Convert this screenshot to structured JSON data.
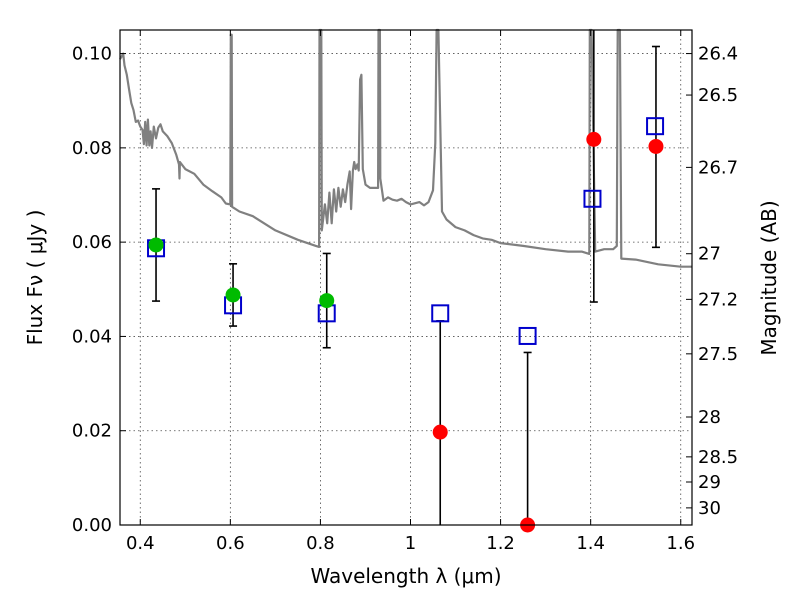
{
  "chart_data": {
    "type": "scatter",
    "xlabel": "Wavelength  λ (μm)",
    "ylabel": "Flux  Fν  ( μJy )",
    "y2label": "Magnitude (AB)",
    "xlim": [
      0.355,
      1.625
    ],
    "ylim": [
      0.0,
      0.105
    ],
    "grid": true,
    "x_ticks": [
      0.4,
      0.6,
      0.8,
      1.0,
      1.2,
      1.4,
      1.6
    ],
    "x_tick_labels": [
      "0.4",
      "0.6",
      "0.8",
      "1",
      "1.2",
      "1.4",
      "1.6"
    ],
    "y_ticks": [
      0.0,
      0.02,
      0.04,
      0.06,
      0.08,
      0.1
    ],
    "y_tick_labels": [
      "0.00",
      "0.02",
      "0.04",
      "0.06",
      "0.08",
      "0.10"
    ],
    "mag_ticks": [
      {
        "mag": 26.4,
        "label": "26.4"
      },
      {
        "mag": 26.5,
        "label": "26.5"
      },
      {
        "mag": 26.7,
        "label": "26.7"
      },
      {
        "mag": 27.0,
        "label": "27"
      },
      {
        "mag": 27.2,
        "label": "27.2"
      },
      {
        "mag": 27.5,
        "label": "27.5"
      },
      {
        "mag": 28.0,
        "label": "28"
      },
      {
        "mag": 28.5,
        "label": "28.5"
      },
      {
        "mag": 29.0,
        "label": "29"
      },
      {
        "mag": 30.0,
        "label": "30"
      }
    ],
    "series": [
      {
        "kind": "observed",
        "points": [
          {
            "x": 0.435,
            "y": 0.0594,
            "ylo": 0.0475,
            "yhi": 0.0713,
            "color": "#00bb00"
          },
          {
            "x": 0.606,
            "y": 0.0488,
            "ylo": 0.0422,
            "yhi": 0.0554,
            "color": "#00bb00"
          },
          {
            "x": 0.814,
            "y": 0.0476,
            "ylo": 0.0376,
            "yhi": 0.0576,
            "color": "#00bb00"
          },
          {
            "x": 1.066,
            "y": 0.0197,
            "ylo": 0.0,
            "yhi": 0.0433,
            "color": "#ff0000"
          },
          {
            "x": 1.26,
            "y": 0.0,
            "ylo": 0.0,
            "yhi": 0.0366,
            "color": "#ff0000"
          },
          {
            "x": 1.407,
            "y": 0.0818,
            "ylo": 0.0473,
            "yhi": 0.105,
            "color": "#ff0000"
          },
          {
            "x": 1.545,
            "y": 0.0803,
            "ylo": 0.0589,
            "yhi": 0.1015,
            "color": "#ff0000"
          }
        ]
      },
      {
        "kind": "model_bandpass",
        "color": "#0000cc",
        "points": [
          {
            "x": 0.435,
            "y": 0.0587
          },
          {
            "x": 0.606,
            "y": 0.0466
          },
          {
            "x": 0.814,
            "y": 0.0449
          },
          {
            "x": 1.066,
            "y": 0.0449
          },
          {
            "x": 1.26,
            "y": 0.0401
          },
          {
            "x": 1.404,
            "y": 0.0692
          },
          {
            "x": 1.543,
            "y": 0.0846
          }
        ]
      },
      {
        "kind": "model_sed",
        "color": "#808080",
        "points": [
          [
            0.355,
            0.0988
          ],
          [
            0.362,
            0.1
          ],
          [
            0.365,
            0.0975
          ],
          [
            0.37,
            0.0955
          ],
          [
            0.375,
            0.0925
          ],
          [
            0.38,
            0.0895
          ],
          [
            0.385,
            0.088
          ],
          [
            0.39,
            0.0855
          ],
          [
            0.395,
            0.0858
          ],
          [
            0.4,
            0.0845
          ],
          [
            0.405,
            0.0838
          ],
          [
            0.408,
            0.0808
          ],
          [
            0.411,
            0.0855
          ],
          [
            0.414,
            0.0805
          ],
          [
            0.417,
            0.086
          ],
          [
            0.42,
            0.0805
          ],
          [
            0.423,
            0.0835
          ],
          [
            0.426,
            0.08
          ],
          [
            0.43,
            0.0845
          ],
          [
            0.435,
            0.082
          ],
          [
            0.44,
            0.0843
          ],
          [
            0.445,
            0.085
          ],
          [
            0.45,
            0.0835
          ],
          [
            0.46,
            0.0825
          ],
          [
            0.47,
            0.081
          ],
          [
            0.48,
            0.0785
          ],
          [
            0.486,
            0.0765
          ],
          [
            0.487,
            0.0735
          ],
          [
            0.488,
            0.077
          ],
          [
            0.5,
            0.0755
          ],
          [
            0.52,
            0.0745
          ],
          [
            0.54,
            0.0722
          ],
          [
            0.56,
            0.0708
          ],
          [
            0.58,
            0.0695
          ],
          [
            0.59,
            0.0682
          ],
          [
            0.6,
            0.068
          ],
          [
            0.601,
            0.104
          ],
          [
            0.603,
            0.104
          ],
          [
            0.604,
            0.0675
          ],
          [
            0.62,
            0.0665
          ],
          [
            0.65,
            0.0655
          ],
          [
            0.7,
            0.0625
          ],
          [
            0.75,
            0.0605
          ],
          [
            0.79,
            0.0592
          ],
          [
            0.797,
            0.059
          ],
          [
            0.798,
            0.105
          ],
          [
            0.802,
            0.105
          ],
          [
            0.803,
            0.0625
          ],
          [
            0.81,
            0.068
          ],
          [
            0.815,
            0.064
          ],
          [
            0.82,
            0.0705
          ],
          [
            0.825,
            0.064
          ],
          [
            0.83,
            0.0712
          ],
          [
            0.835,
            0.0665
          ],
          [
            0.84,
            0.0715
          ],
          [
            0.845,
            0.0675
          ],
          [
            0.85,
            0.0712
          ],
          [
            0.855,
            0.0685
          ],
          [
            0.86,
            0.0722
          ],
          [
            0.865,
            0.075
          ],
          [
            0.868,
            0.067
          ],
          [
            0.872,
            0.0752
          ],
          [
            0.875,
            0.077
          ],
          [
            0.878,
            0.0755
          ],
          [
            0.882,
            0.0765
          ],
          [
            0.885,
            0.0752
          ],
          [
            0.888,
            0.0945
          ],
          [
            0.891,
            0.0955
          ],
          [
            0.894,
            0.0755
          ],
          [
            0.9,
            0.0722
          ],
          [
            0.91,
            0.0715
          ],
          [
            0.92,
            0.0715
          ],
          [
            0.928,
            0.0715
          ],
          [
            0.929,
            0.105
          ],
          [
            0.932,
            0.105
          ],
          [
            0.933,
            0.0735
          ],
          [
            0.94,
            0.0688
          ],
          [
            0.95,
            0.0695
          ],
          [
            0.96,
            0.069
          ],
          [
            0.97,
            0.0688
          ],
          [
            0.98,
            0.0692
          ],
          [
            0.99,
            0.0685
          ],
          [
            1.0,
            0.068
          ],
          [
            1.02,
            0.0685
          ],
          [
            1.03,
            0.0678
          ],
          [
            1.04,
            0.0685
          ],
          [
            1.05,
            0.071
          ],
          [
            1.055,
            0.081
          ],
          [
            1.058,
            0.105
          ],
          [
            1.062,
            0.105
          ],
          [
            1.07,
            0.0665
          ],
          [
            1.08,
            0.0648
          ],
          [
            1.1,
            0.0632
          ],
          [
            1.12,
            0.0625
          ],
          [
            1.14,
            0.0615
          ],
          [
            1.16,
            0.0608
          ],
          [
            1.18,
            0.0605
          ],
          [
            1.2,
            0.0598
          ],
          [
            1.25,
            0.0592
          ],
          [
            1.3,
            0.0585
          ],
          [
            1.35,
            0.058
          ],
          [
            1.38,
            0.058
          ],
          [
            1.397,
            0.0575
          ],
          [
            1.398,
            0.105
          ],
          [
            1.402,
            0.105
          ],
          [
            1.41,
            0.058
          ],
          [
            1.43,
            0.0585
          ],
          [
            1.45,
            0.0585
          ],
          [
            1.458,
            0.0592
          ],
          [
            1.46,
            0.105
          ],
          [
            1.465,
            0.105
          ],
          [
            1.468,
            0.0565
          ],
          [
            1.5,
            0.0563
          ],
          [
            1.55,
            0.0553
          ],
          [
            1.6,
            0.0548
          ],
          [
            1.625,
            0.0548
          ]
        ]
      }
    ]
  }
}
